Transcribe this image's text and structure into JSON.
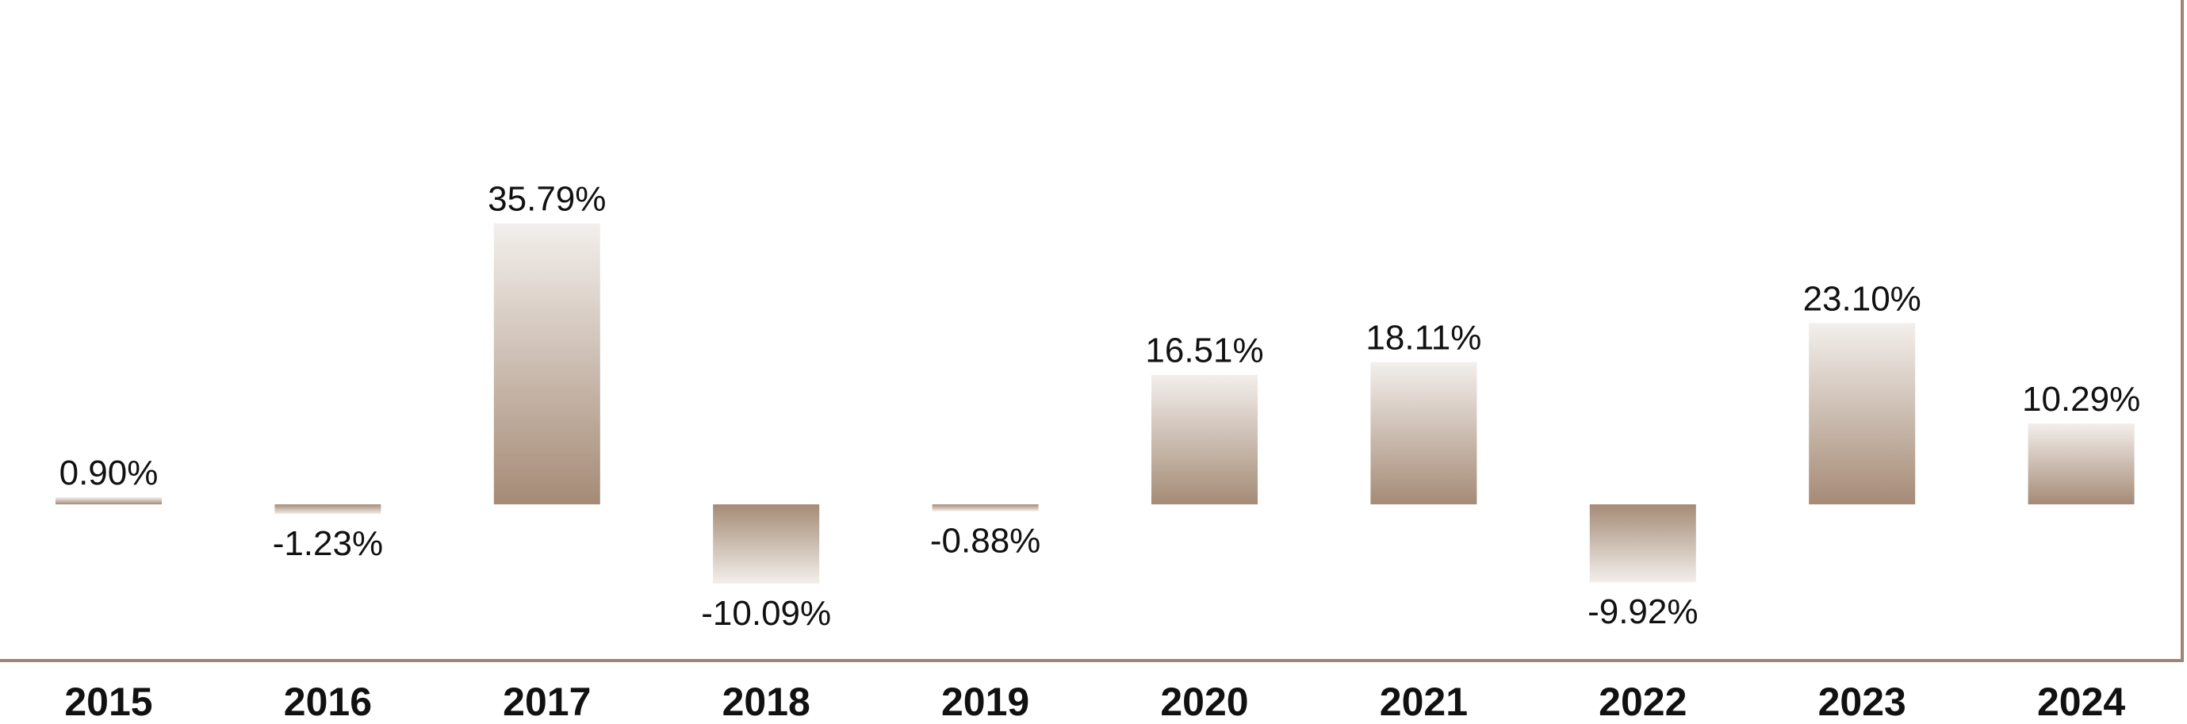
{
  "chart_data": {
    "type": "bar",
    "categories": [
      "2015",
      "2016",
      "2017",
      "2018",
      "2019",
      "2020",
      "2021",
      "2022",
      "2023",
      "2024"
    ],
    "values": [
      0.9,
      -1.23,
      35.79,
      -10.09,
      -0.88,
      16.51,
      18.11,
      -9.92,
      23.1,
      10.29
    ],
    "value_labels": [
      "0.90%",
      "-1.23%",
      "35.79%",
      "-10.09%",
      "-0.88%",
      "16.51%",
      "18.11%",
      "-9.92%",
      "23.10%",
      "10.29%"
    ],
    "title": "",
    "xlabel": "",
    "ylabel": "",
    "ylim": [
      -20,
      50
    ],
    "grid": false,
    "legend": "none",
    "colors": {
      "bar_dark": "#a58b76",
      "bar_light": "#f3efec",
      "axis": "#a08672",
      "text": "#111111"
    }
  }
}
